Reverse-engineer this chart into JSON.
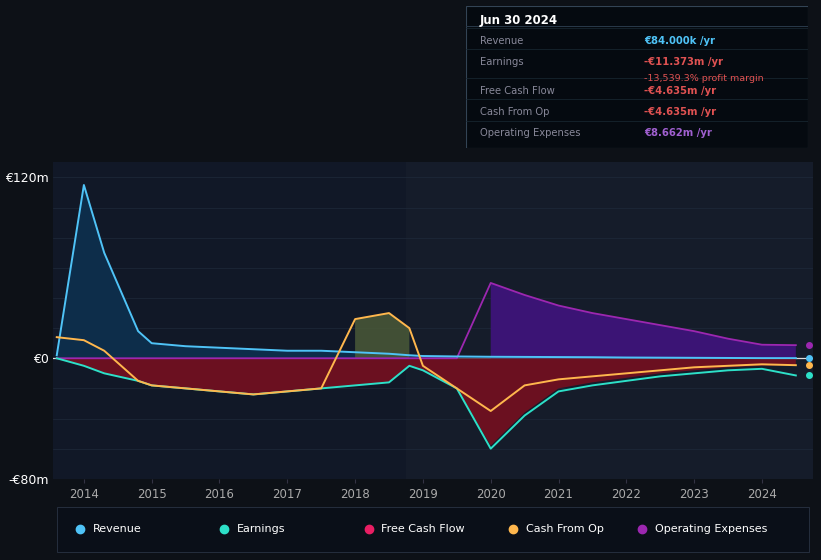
{
  "bg_color": "#0d1117",
  "plot_bg_color": "#111827",
  "forecast_bg_color": "#151c2a",
  "grid_color": "#1e2a3a",
  "zero_line_color": "#dddddd",
  "years": [
    2013.6,
    2014.0,
    2014.3,
    2014.8,
    2015.0,
    2015.5,
    2016.0,
    2016.5,
    2017.0,
    2017.5,
    2018.0,
    2018.5,
    2018.8,
    2019.0,
    2019.5,
    2020.0,
    2020.5,
    2021.0,
    2021.5,
    2022.0,
    2022.5,
    2023.0,
    2023.5,
    2024.0,
    2024.5
  ],
  "revenue": [
    2,
    115,
    70,
    18,
    10,
    8,
    7,
    6,
    5,
    5,
    4,
    3,
    2,
    1.5,
    1.2,
    1.0,
    0.9,
    0.8,
    0.7,
    0.5,
    0.4,
    0.3,
    0.2,
    0.1,
    0.084
  ],
  "earnings": [
    0,
    -5,
    -10,
    -15,
    -18,
    -20,
    -22,
    -24,
    -22,
    -20,
    -18,
    -16,
    -5,
    -8,
    -20,
    -60,
    -38,
    -22,
    -18,
    -15,
    -12,
    -10,
    -8,
    -7,
    -11.4
  ],
  "free_cash_flow": [
    0,
    -5,
    -10,
    -15,
    -18,
    -20,
    -22,
    -24,
    -22,
    -20,
    -18,
    -16,
    -5,
    -8,
    -20,
    -58,
    -36,
    -20,
    -16,
    -13,
    -10,
    -8,
    -6,
    -5,
    -4.6
  ],
  "cash_from_op": [
    14,
    12,
    5,
    -15,
    -18,
    -20,
    -22,
    -24,
    -22,
    -20,
    26,
    30,
    20,
    -5,
    -20,
    -35,
    -18,
    -14,
    -12,
    -10,
    -8,
    -6,
    -5,
    -4,
    -4.6
  ],
  "operating_expenses": [
    0,
    0,
    0,
    0,
    0,
    0,
    0,
    0,
    0,
    0,
    0,
    0,
    0,
    0,
    0,
    50,
    42,
    35,
    30,
    26,
    22,
    18,
    13,
    9,
    8.7
  ],
  "revenue_color": "#4fc3f7",
  "earnings_color": "#2de0c8",
  "fcf_color": "#e91e63",
  "cash_op_color": "#ffb74d",
  "op_exp_color": "#9c27b0",
  "revenue_fill_color": "#0d2d4a",
  "fcf_fill_color": "#6b1020",
  "op_exp_fill_color": "#3b1475",
  "xlim_left": 2013.55,
  "xlim_right": 2024.75,
  "ylim_bottom": -80,
  "ylim_top": 130,
  "ytick_vals": [
    -80,
    0,
    120
  ],
  "ytick_labels": [
    "-€80m",
    "€0",
    "€120m"
  ],
  "xtick_years": [
    2014,
    2015,
    2016,
    2017,
    2018,
    2019,
    2020,
    2021,
    2022,
    2023,
    2024
  ],
  "forecast_start": 2018.75,
  "table_title": "Jun 30 2024",
  "table_rows": [
    {
      "label": "Revenue",
      "value": "€84.000k /yr",
      "value_color": "#4fc3f7",
      "extra": null,
      "extra_color": null
    },
    {
      "label": "Earnings",
      "value": "-€11.373m /yr",
      "value_color": "#e05252",
      "extra": "-13,539.3% profit margin",
      "extra_color": "#e05252"
    },
    {
      "label": "Free Cash Flow",
      "value": "-€4.635m /yr",
      "value_color": "#e05252",
      "extra": null,
      "extra_color": null
    },
    {
      "label": "Cash From Op",
      "value": "-€4.635m /yr",
      "value_color": "#e05252",
      "extra": null,
      "extra_color": null
    },
    {
      "label": "Operating Expenses",
      "value": "€8.662m /yr",
      "value_color": "#a060d0",
      "extra": null,
      "extra_color": null
    }
  ],
  "legend_entries": [
    {
      "label": "Revenue",
      "color": "#4fc3f7"
    },
    {
      "label": "Earnings",
      "color": "#2de0c8"
    },
    {
      "label": "Free Cash Flow",
      "color": "#e91e63"
    },
    {
      "label": "Cash From Op",
      "color": "#ffb74d"
    },
    {
      "label": "Operating Expenses",
      "color": "#9c27b0"
    }
  ]
}
